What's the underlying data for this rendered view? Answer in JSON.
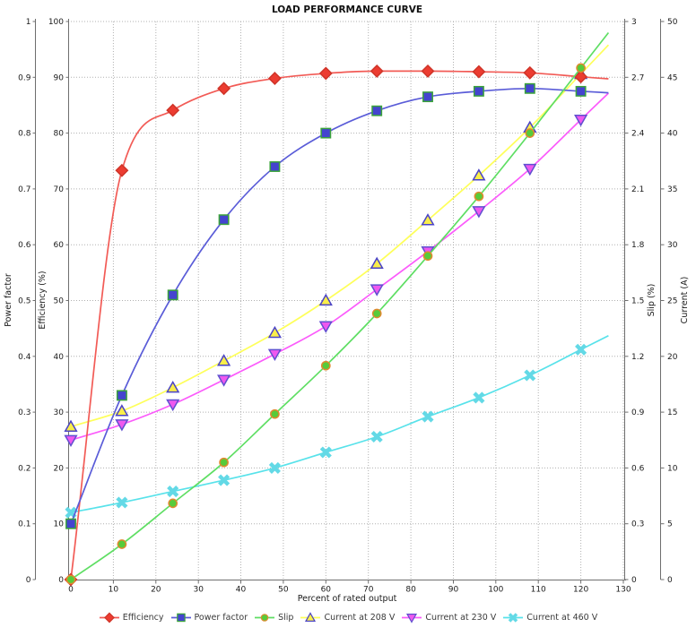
{
  "chart_data": {
    "type": "line",
    "title": "LOAD PERFORMANCE CURVE",
    "xlabel": "Percent of rated output",
    "xlim": [
      0,
      130
    ],
    "x_ticks": [
      0,
      10,
      20,
      30,
      40,
      50,
      60,
      70,
      80,
      90,
      100,
      110,
      120,
      130
    ],
    "grid": true,
    "legend_position": "bottom",
    "axes": {
      "power_factor": {
        "label": "Power factor",
        "min": 0,
        "max": 1,
        "ticks": [
          0,
          0.1,
          0.2,
          0.3,
          0.4,
          0.5,
          0.6,
          0.7,
          0.8,
          0.9,
          1
        ]
      },
      "efficiency": {
        "label": "Efficiency (%)",
        "min": 0,
        "max": 100,
        "ticks": [
          0,
          10,
          20,
          30,
          40,
          50,
          60,
          70,
          80,
          90,
          100
        ]
      },
      "slip": {
        "label": "Slip (%)",
        "min": 0,
        "max": 3,
        "ticks": [
          0,
          0.3,
          0.6,
          0.9,
          1.2,
          1.5,
          1.8,
          2.1,
          2.4,
          2.7,
          3
        ]
      },
      "current": {
        "label": "Current (A)",
        "min": 0,
        "max": 50,
        "ticks": [
          0,
          5,
          10,
          15,
          20,
          25,
          30,
          35,
          40,
          45,
          50
        ]
      }
    },
    "x": [
      0,
      12,
      24,
      36,
      48,
      60,
      72,
      84,
      96,
      108,
      120
    ],
    "series": [
      {
        "name": "Efficiency",
        "axis": "efficiency",
        "marker": "diamond",
        "line_color": "#f25b56",
        "marker_fill": "#ec3c31",
        "marker_edge": "#cf3428",
        "values": [
          0,
          73.3,
          84.1,
          88,
          89.8,
          90.7,
          91.1,
          91.1,
          91,
          90.8,
          90.1
        ]
      },
      {
        "name": "Power factor",
        "axis": "power_factor",
        "marker": "square",
        "line_color": "#5a5cd8",
        "marker_fill": "#4444cf",
        "marker_edge": "#3aa33a",
        "values": [
          0.1,
          0.33,
          0.51,
          0.645,
          0.74,
          0.8,
          0.84,
          0.865,
          0.875,
          0.88,
          0.875
        ]
      },
      {
        "name": "Slip",
        "axis": "slip",
        "marker": "circle",
        "line_color": "#5ede63",
        "marker_fill": "#57cb3a",
        "marker_edge": "#e0892e",
        "values": [
          0,
          0.19,
          0.41,
          0.63,
          0.89,
          1.15,
          1.43,
          1.74,
          2.06,
          2.4,
          2.75
        ]
      },
      {
        "name": "Current at 208 V",
        "axis": "current",
        "marker": "triangle-up",
        "line_color": "#feff5a",
        "marker_fill": "#f9ee4a",
        "marker_edge": "#4a43c6",
        "values": [
          13.7,
          15.1,
          17.2,
          19.6,
          22.1,
          25,
          28.3,
          32.2,
          36.2,
          40.5,
          45.3
        ]
      },
      {
        "name": "Current at 230 V",
        "axis": "current",
        "marker": "triangle-down",
        "line_color": "#fb5bfb",
        "marker_fill": "#ef58ef",
        "marker_edge": "#6050d0",
        "values": [
          12.5,
          13.9,
          15.7,
          17.9,
          20.2,
          22.7,
          26,
          29.4,
          33,
          36.8,
          41.2
        ]
      },
      {
        "name": "Current at 460 V",
        "axis": "current",
        "marker": "x",
        "line_color": "#58e2ea",
        "marker_fill": "#63d9e6",
        "marker_edge": "#63d9e6",
        "values": [
          6,
          6.9,
          7.9,
          8.9,
          10,
          11.4,
          12.8,
          14.6,
          16.3,
          18.3,
          20.6
        ]
      }
    ]
  }
}
